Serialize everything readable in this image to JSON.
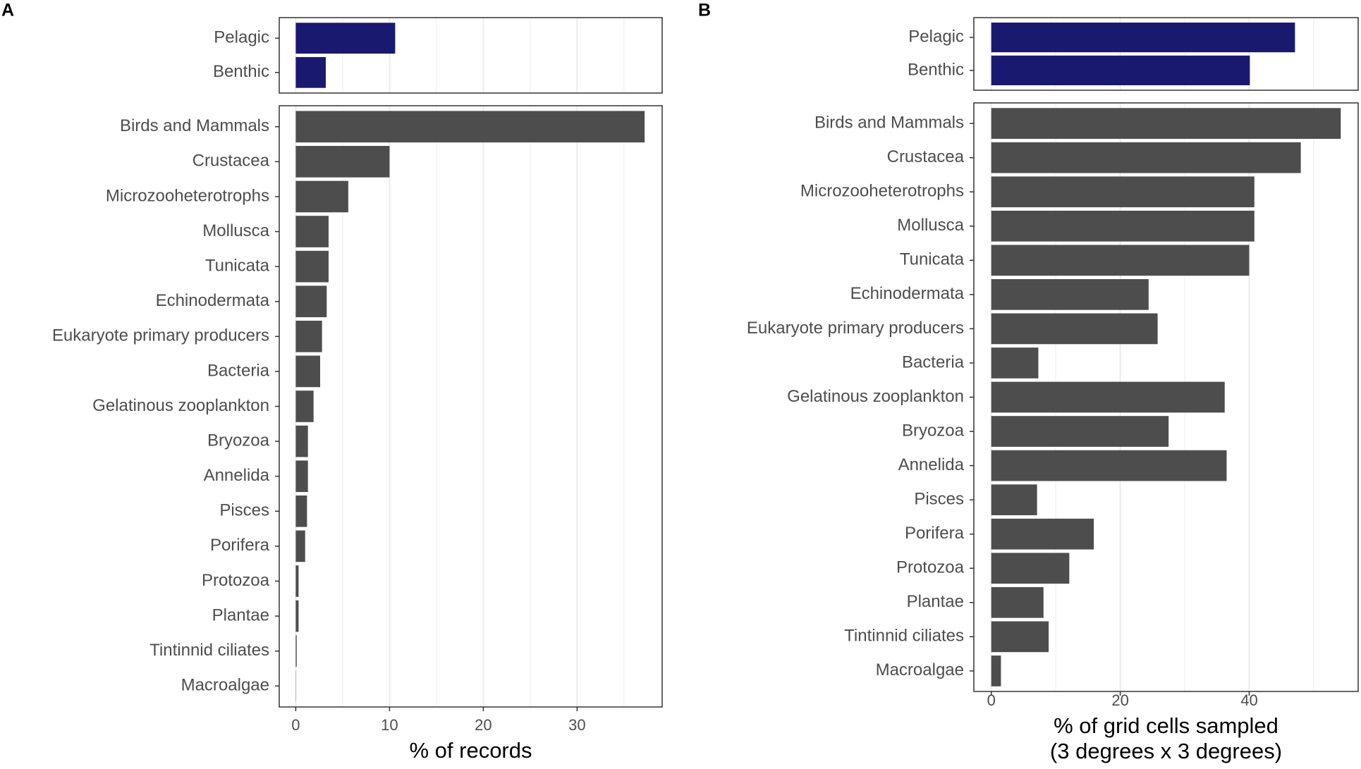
{
  "chart_data": [
    {
      "type": "bar",
      "panel_label": "A",
      "xlabel": [
        "% of records"
      ],
      "xlim": [
        -1.76,
        39.07
      ],
      "xticks": [
        0,
        10,
        20,
        30
      ],
      "grid": true,
      "habitat": {
        "categories": [
          "Pelagic",
          "Benthic"
        ],
        "values": [
          10.6,
          3.2
        ],
        "color": "#191970"
      },
      "groups": {
        "categories": [
          "Birds and Mammals",
          "Crustacea",
          "Microzooheterotrophs",
          "Mollusca",
          "Tunicata",
          "Echinodermata",
          "Eukaryote primary producers",
          "Bacteria",
          "Gelatinous zooplankton",
          "Bryozoa",
          "Annelida",
          "Pisces",
          "Porifera",
          "Protozoa",
          "Plantae",
          "Tintinnid ciliates",
          "Macroalgae"
        ],
        "values": [
          37.2,
          10.0,
          5.6,
          3.5,
          3.5,
          3.3,
          2.8,
          2.6,
          1.9,
          1.3,
          1.3,
          1.2,
          1.0,
          0.3,
          0.3,
          0.1,
          0.02
        ],
        "color": "#4d4d4d"
      }
    },
    {
      "type": "bar",
      "panel_label": "B",
      "xlabel": [
        "% of grid cells sampled",
        "(3 degrees x 3 degrees)"
      ],
      "xlim": [
        -2.7,
        56.9
      ],
      "xticks": [
        0,
        20,
        40
      ],
      "grid": true,
      "habitat": {
        "categories": [
          "Pelagic",
          "Benthic"
        ],
        "values": [
          47.1,
          40.1
        ],
        "color": "#191970"
      },
      "groups": {
        "categories": [
          "Birds and Mammals",
          "Crustacea",
          "Microzooheterotrophs",
          "Mollusca",
          "Tunicata",
          "Echinodermata",
          "Eukaryote primary producers",
          "Bacteria",
          "Gelatinous zooplankton",
          "Bryozoa",
          "Annelida",
          "Pisces",
          "Porifera",
          "Protozoa",
          "Plantae",
          "Tintinnid ciliates",
          "Macroalgae"
        ],
        "values": [
          54.2,
          48.0,
          40.8,
          40.8,
          40.0,
          24.4,
          25.8,
          7.3,
          36.2,
          27.5,
          36.5,
          7.1,
          15.9,
          12.1,
          8.1,
          8.9,
          1.5
        ],
        "color": "#4d4d4d"
      }
    }
  ]
}
